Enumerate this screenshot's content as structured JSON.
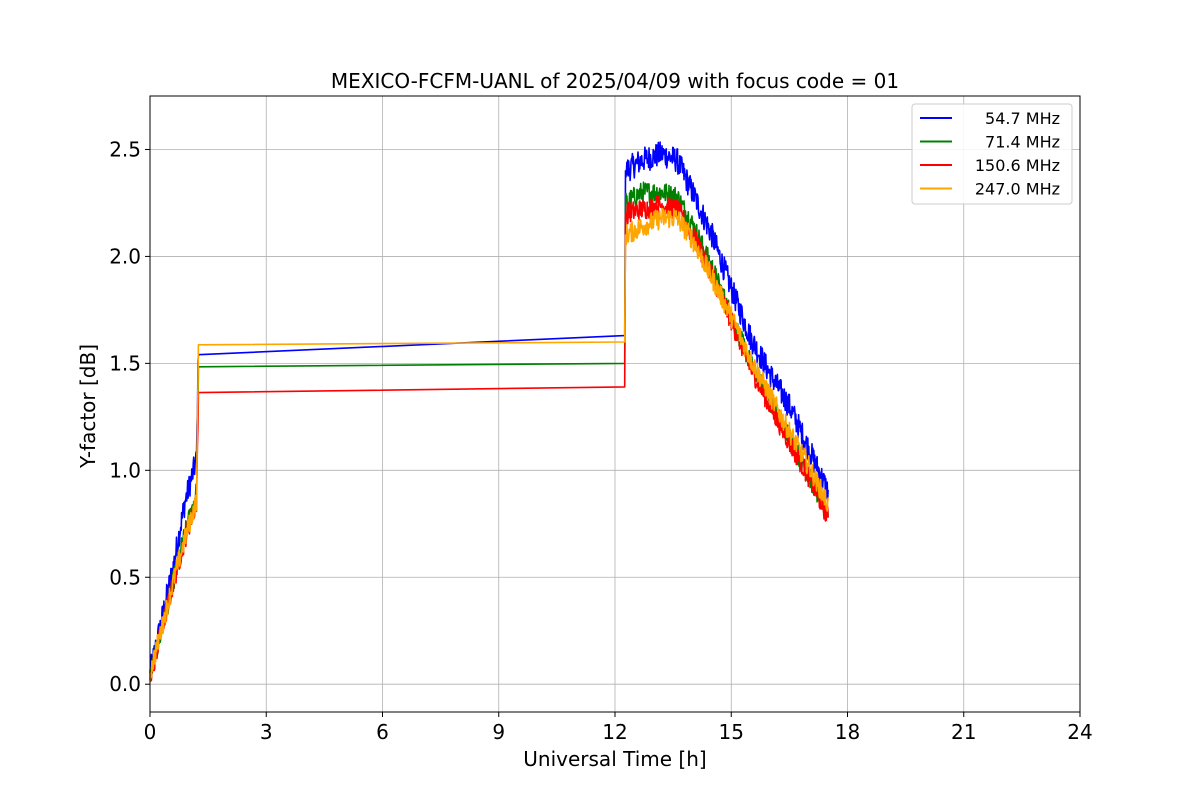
{
  "chart_data": {
    "type": "line",
    "title": "MEXICO-FCFM-UANL of 2025/04/09 with focus code = 01",
    "xlabel": "Universal Time [h]",
    "ylabel": "Y-factor [dB]",
    "xlim": [
      0,
      24
    ],
    "ylim": [
      -0.13,
      2.75
    ],
    "xticks": [
      0,
      3,
      6,
      9,
      12,
      15,
      18,
      21,
      24
    ],
    "xtick_labels": [
      "0",
      "3",
      "6",
      "9",
      "12",
      "15",
      "18",
      "21",
      "24"
    ],
    "yticks": [
      0.0,
      0.5,
      1.0,
      1.5,
      2.0,
      2.5
    ],
    "ytick_labels": [
      "0.0",
      "0.5",
      "1.0",
      "1.5",
      "2.0",
      "2.5"
    ],
    "grid": true,
    "legend_position": "top-right",
    "series": [
      {
        "name": "54.7 MHz",
        "color": "#0000ff",
        "noise": 0.06,
        "points": [
          [
            0.0,
            0.05
          ],
          [
            0.3,
            0.3
          ],
          [
            0.6,
            0.55
          ],
          [
            0.9,
            0.85
          ],
          [
            1.2,
            1.05
          ],
          [
            1.25,
            1.59
          ],
          [
            12.25,
            1.63
          ],
          [
            12.27,
            2.4
          ],
          [
            12.7,
            2.45
          ],
          [
            13.2,
            2.48
          ],
          [
            13.6,
            2.45
          ],
          [
            14.0,
            2.3
          ],
          [
            14.5,
            2.1
          ],
          [
            15.0,
            1.85
          ],
          [
            15.5,
            1.62
          ],
          [
            16.0,
            1.45
          ],
          [
            16.5,
            1.3
          ],
          [
            17.0,
            1.1
          ],
          [
            17.5,
            0.9
          ]
        ]
      },
      {
        "name": "71.4 MHz",
        "color": "#008000",
        "noise": 0.05,
        "points": [
          [
            0.0,
            0.03
          ],
          [
            0.3,
            0.25
          ],
          [
            0.6,
            0.48
          ],
          [
            0.9,
            0.7
          ],
          [
            1.2,
            0.9
          ],
          [
            1.25,
            1.47
          ],
          [
            12.25,
            1.5
          ],
          [
            12.27,
            2.25
          ],
          [
            12.7,
            2.3
          ],
          [
            13.2,
            2.3
          ],
          [
            13.6,
            2.28
          ],
          [
            14.0,
            2.15
          ],
          [
            14.5,
            1.95
          ],
          [
            15.0,
            1.72
          ],
          [
            15.5,
            1.5
          ],
          [
            16.0,
            1.32
          ],
          [
            16.5,
            1.15
          ],
          [
            17.0,
            0.98
          ],
          [
            17.5,
            0.78
          ]
        ]
      },
      {
        "name": "150.6 MHz",
        "color": "#ff0000",
        "noise": 0.05,
        "points": [
          [
            0.0,
            0.03
          ],
          [
            0.3,
            0.25
          ],
          [
            0.6,
            0.47
          ],
          [
            0.9,
            0.68
          ],
          [
            1.2,
            0.85
          ],
          [
            1.25,
            1.35
          ],
          [
            12.25,
            1.39
          ],
          [
            12.27,
            2.2
          ],
          [
            12.7,
            2.22
          ],
          [
            13.2,
            2.24
          ],
          [
            13.6,
            2.22
          ],
          [
            14.0,
            2.1
          ],
          [
            14.5,
            1.92
          ],
          [
            15.0,
            1.7
          ],
          [
            15.5,
            1.48
          ],
          [
            16.0,
            1.3
          ],
          [
            16.5,
            1.13
          ],
          [
            17.0,
            0.97
          ],
          [
            17.5,
            0.78
          ]
        ]
      },
      {
        "name": "247.0 MHz",
        "color": "#ffa500",
        "noise": 0.05,
        "points": [
          [
            0.0,
            0.05
          ],
          [
            0.3,
            0.26
          ],
          [
            0.6,
            0.48
          ],
          [
            0.9,
            0.68
          ],
          [
            1.2,
            0.86
          ],
          [
            1.25,
            1.57
          ],
          [
            12.25,
            1.6
          ],
          [
            12.27,
            2.1
          ],
          [
            12.7,
            2.14
          ],
          [
            13.2,
            2.18
          ],
          [
            13.6,
            2.18
          ],
          [
            14.0,
            2.08
          ],
          [
            14.5,
            1.9
          ],
          [
            15.0,
            1.72
          ],
          [
            15.5,
            1.52
          ],
          [
            16.0,
            1.35
          ],
          [
            16.5,
            1.18
          ],
          [
            17.0,
            1.02
          ],
          [
            17.5,
            0.84
          ]
        ]
      }
    ]
  }
}
